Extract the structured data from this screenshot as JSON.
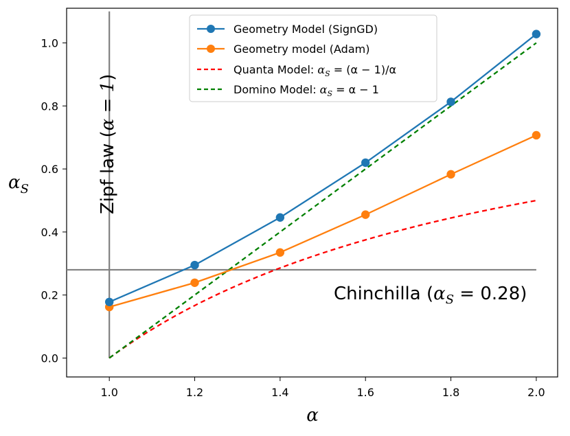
{
  "chart_data": {
    "type": "line",
    "title": "",
    "xlabel": "α",
    "ylabel": "α_S",
    "xlim": [
      0.9,
      2.05
    ],
    "ylim": [
      -0.06,
      1.11
    ],
    "xticks": [
      "1.0",
      "1.2",
      "1.4",
      "1.6",
      "1.8",
      "2.0"
    ],
    "yticks": [
      "0.0",
      "0.2",
      "0.4",
      "0.6",
      "0.8",
      "1.0"
    ],
    "grid": false,
    "legend_position": "top-center",
    "series": [
      {
        "name": "Geometry Model (SignGD)",
        "style": "solid-marker",
        "color": "#1f77b4",
        "x": [
          1.0,
          1.2,
          1.4,
          1.6,
          1.8,
          2.0
        ],
        "y": [
          0.178,
          0.295,
          0.446,
          0.62,
          0.813,
          1.028
        ]
      },
      {
        "name": "Geometry model (Adam)",
        "style": "solid-marker",
        "color": "#ff7f0e",
        "x": [
          1.0,
          1.2,
          1.4,
          1.6,
          1.8,
          2.0
        ],
        "y": [
          0.162,
          0.239,
          0.335,
          0.455,
          0.583,
          0.707
        ]
      },
      {
        "name": "Quanta Model: α_S = (α − 1)/α",
        "style": "dashed",
        "color": "#ff0000",
        "formula": "(a-1)/a",
        "x": [
          1.0,
          2.0
        ]
      },
      {
        "name": "Domino Model: α_S = α − 1",
        "style": "dashed",
        "color": "#008000",
        "formula": "a-1",
        "x": [
          1.0,
          2.0
        ]
      }
    ],
    "reference_lines": [
      {
        "orientation": "vertical",
        "value": 1.0,
        "y_range": [
          0.0,
          1.1
        ],
        "label": "Zipf law (α = 1)",
        "color": "#808080"
      },
      {
        "orientation": "horizontal",
        "value": 0.28,
        "x_range": [
          0.9,
          2.0
        ],
        "label": "Chinchilla (α_S = 0.28)",
        "color": "#808080"
      }
    ],
    "legend_labels": {
      "signgd": "Geometry Model (SignGD)",
      "adam": "Geometry model (Adam)",
      "quanta_prefix": "Quanta Model: ",
      "quanta_rhs": " = (α − 1)/α",
      "domino_prefix": "Domino Model: ",
      "domino_rhs": " = α − 1"
    },
    "annotations": {
      "zipf_prefix": "Zipf law (",
      "zipf_math": "α = 1",
      "zipf_suffix": ")",
      "chinchilla_prefix": "Chinchilla (",
      "chinchilla_math": " = 0.28",
      "chinchilla_suffix": ")"
    },
    "symbols": {
      "alpha": "α",
      "subscript_s": "S"
    }
  }
}
